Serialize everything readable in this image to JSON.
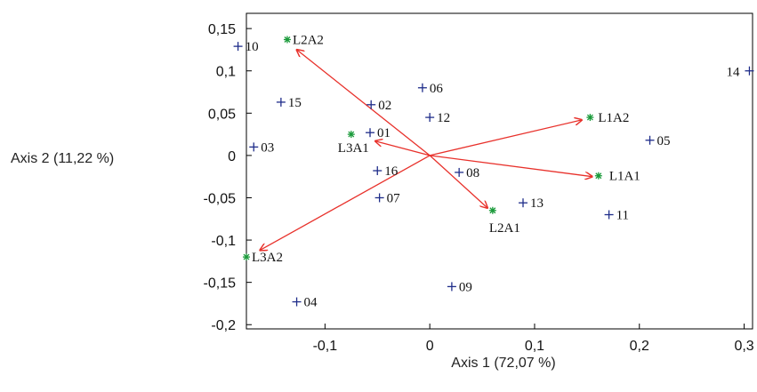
{
  "chart_data": {
    "type": "scatter",
    "xlabel": "Axis 1 (72,07 %)",
    "ylabel": "Axis 2 (11,22 %)",
    "xlim": [
      -0.175,
      0.308
    ],
    "ylim": [
      -0.205,
      0.168
    ],
    "x_ticks": [
      -0.1,
      0,
      0.1,
      0.2,
      0.3
    ],
    "x_tick_labels": [
      "-0,1",
      "0",
      "0,1",
      "0,2",
      "0,3"
    ],
    "y_ticks": [
      0.15,
      0.1,
      0.05,
      0,
      -0.05,
      -0.1,
      -0.15,
      -0.2
    ],
    "y_tick_labels": [
      "0,15",
      "0,1",
      "0,05",
      "0",
      "-0,05",
      "-0,1",
      "-0,15",
      "-0,2"
    ],
    "grid": false,
    "colors": {
      "observations": "#1f2d8a",
      "variables": "#1a9a3a",
      "arrows": "#e8312b",
      "frame": "#000000"
    },
    "observations": [
      {
        "label": "10",
        "x": -0.183,
        "y": 0.129
      },
      {
        "label": "14",
        "x": 0.305,
        "y": 0.1
      },
      {
        "label": "15",
        "x": -0.142,
        "y": 0.063
      },
      {
        "label": "02",
        "x": -0.056,
        "y": 0.06
      },
      {
        "label": "06",
        "x": -0.007,
        "y": 0.08
      },
      {
        "label": "12",
        "x": 0.0,
        "y": 0.045
      },
      {
        "label": "01",
        "x": -0.057,
        "y": 0.027
      },
      {
        "label": "03",
        "x": -0.168,
        "y": 0.01
      },
      {
        "label": "16",
        "x": -0.05,
        "y": -0.018
      },
      {
        "label": "08",
        "x": 0.028,
        "y": -0.02
      },
      {
        "label": "07",
        "x": -0.048,
        "y": -0.05
      },
      {
        "label": "13",
        "x": 0.089,
        "y": -0.056
      },
      {
        "label": "11",
        "x": 0.171,
        "y": -0.07
      },
      {
        "label": "05",
        "x": 0.21,
        "y": 0.018
      },
      {
        "label": "09",
        "x": 0.021,
        "y": -0.155
      },
      {
        "label": "04",
        "x": -0.127,
        "y": -0.173
      }
    ],
    "variables": [
      {
        "label": "L2A2",
        "x": -0.136,
        "y": 0.137
      },
      {
        "label": "L1A2",
        "x": 0.153,
        "y": 0.045
      },
      {
        "label": "L3A1",
        "x": -0.075,
        "y": 0.025
      },
      {
        "label": "L1A1",
        "x": 0.161,
        "y": -0.024
      },
      {
        "label": "L2A1",
        "x": 0.06,
        "y": -0.065
      },
      {
        "label": "L3A2",
        "x": -0.175,
        "y": -0.12
      }
    ],
    "arrows": [
      {
        "x": -0.127,
        "y": 0.125
      },
      {
        "x": 0.145,
        "y": 0.042
      },
      {
        "x": -0.052,
        "y": 0.017
      },
      {
        "x": 0.155,
        "y": -0.025
      },
      {
        "x": 0.055,
        "y": -0.062
      },
      {
        "x": -0.162,
        "y": -0.112
      }
    ]
  }
}
